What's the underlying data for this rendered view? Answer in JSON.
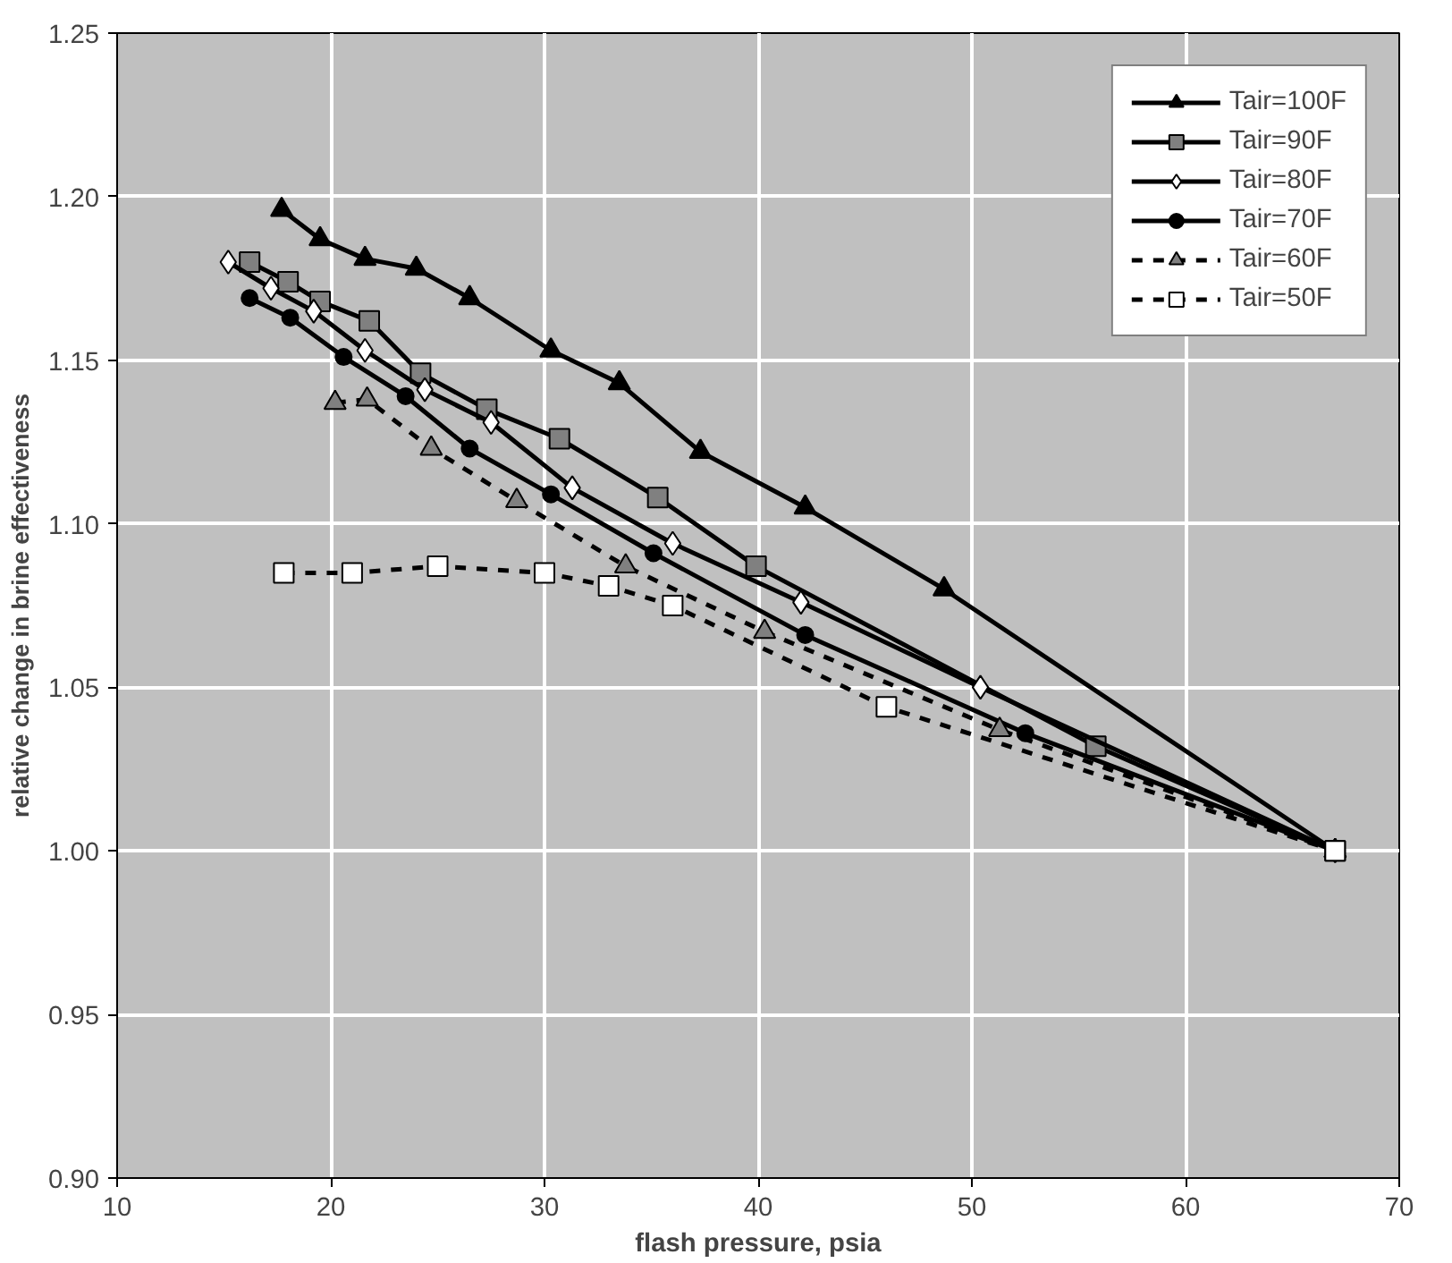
{
  "chart_data": {
    "type": "line",
    "xlabel": "flash pressure, psia",
    "ylabel": "relative change in brine effectiveness",
    "xlim": [
      10,
      70
    ],
    "xticks": [
      10,
      20,
      30,
      40,
      50,
      60,
      70
    ],
    "ylim": [
      0.9,
      1.25
    ],
    "yticks": [
      {
        "value": 0.9,
        "label": "0.90"
      },
      {
        "value": 0.95,
        "label": "0.95"
      },
      {
        "value": 1.0,
        "label": "1.00"
      },
      {
        "value": 1.05,
        "label": "1.05"
      },
      {
        "value": 1.1,
        "label": "1.10"
      },
      {
        "value": 1.15,
        "label": "1.15"
      },
      {
        "value": 1.2,
        "label": "1.20"
      },
      {
        "value": 1.25,
        "label": "1.25"
      }
    ],
    "grid": true,
    "legend": "top right",
    "series": [
      {
        "name": "Tair=100F",
        "color": "#000000",
        "marker": "triangle",
        "line_style": "solid",
        "x": [
          17.7,
          19.5,
          21.6,
          24,
          26.5,
          30.3,
          33.5,
          37.3,
          42.2,
          48.7,
          67
        ],
        "values": [
          1.196,
          1.187,
          1.181,
          1.178,
          1.169,
          1.153,
          1.143,
          1.122,
          1.105,
          1.08,
          1.0
        ]
      },
      {
        "name": "Tair=90F",
        "color": "#808080",
        "marker": "square",
        "line_style": "solid",
        "x": [
          16.2,
          18,
          19.5,
          21.8,
          24.2,
          27.3,
          30.7,
          35.3,
          39.9,
          55.8,
          67
        ],
        "values": [
          1.18,
          1.174,
          1.168,
          1.162,
          1.146,
          1.135,
          1.126,
          1.108,
          1.087,
          1.032,
          1.0
        ]
      },
      {
        "name": "Tair=80F",
        "color": "#ffffff",
        "marker": "diamond",
        "line_style": "solid",
        "x": [
          15.2,
          17.2,
          19.2,
          21.6,
          24.4,
          27.5,
          31.3,
          36,
          42,
          50.4,
          67
        ],
        "values": [
          1.18,
          1.172,
          1.165,
          1.153,
          1.141,
          1.131,
          1.111,
          1.094,
          1.076,
          1.05,
          1.0
        ]
      },
      {
        "name": "Tair=70F",
        "color": "#000000",
        "marker": "circle",
        "line_style": "solid",
        "x": [
          16.2,
          18.1,
          20.6,
          23.5,
          26.5,
          30.3,
          35.1,
          42.2,
          52.5,
          67
        ],
        "values": [
          1.169,
          1.163,
          1.151,
          1.139,
          1.123,
          1.109,
          1.091,
          1.066,
          1.036,
          1.0
        ]
      },
      {
        "name": "Tair=60F",
        "color": "#808080",
        "marker": "triangle",
        "line_style": "dashed",
        "x": [
          20.2,
          21.7,
          24.7,
          28.7,
          33.8,
          40.3,
          51.3,
          67
        ],
        "values": [
          1.137,
          1.138,
          1.123,
          1.107,
          1.087,
          1.067,
          1.037,
          1.0
        ]
      },
      {
        "name": "Tair=50F",
        "color": "#ffffff",
        "marker": "square",
        "line_style": "dashed",
        "x": [
          17.8,
          21,
          25,
          30,
          33,
          36,
          46,
          67
        ],
        "values": [
          1.085,
          1.085,
          1.087,
          1.085,
          1.081,
          1.075,
          1.044,
          1.0
        ]
      }
    ]
  }
}
